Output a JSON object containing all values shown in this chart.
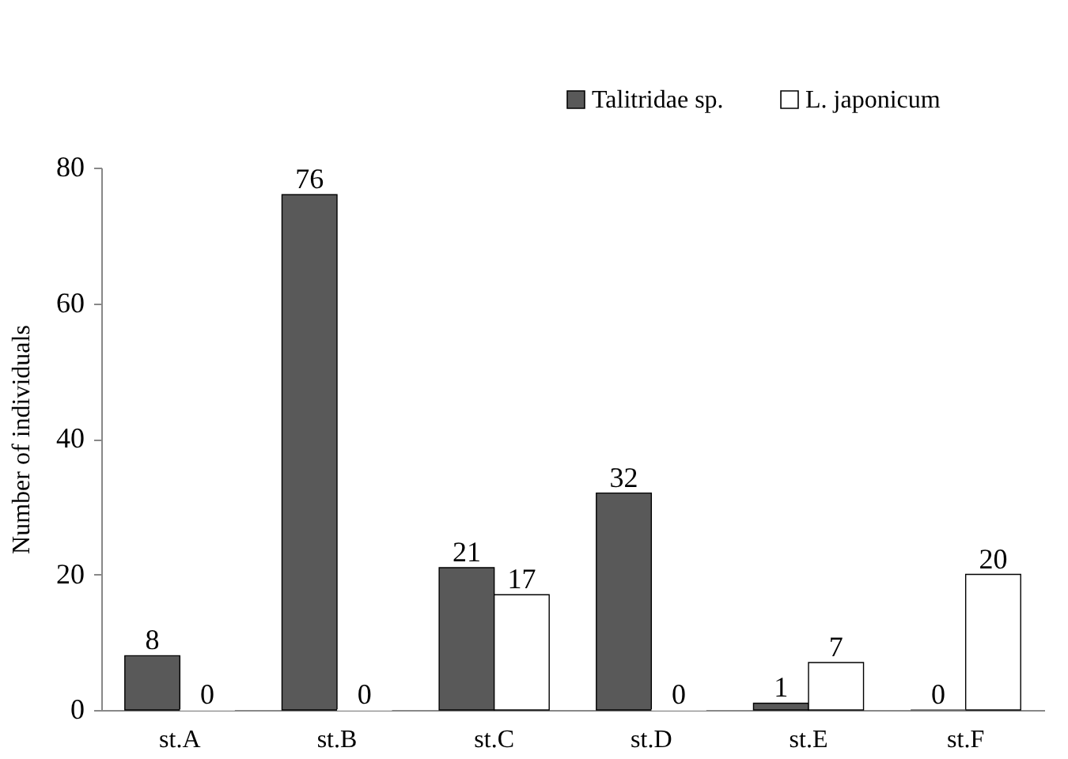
{
  "chart_data": {
    "type": "bar",
    "ylabel": "Number of individuals",
    "categories": [
      "st.A",
      "st.B",
      "st.C",
      "st.D",
      "st.E",
      "st.F"
    ],
    "series": [
      {
        "name": "Talitridae sp.",
        "color": "#595959",
        "values": [
          8,
          76,
          21,
          32,
          1,
          0
        ]
      },
      {
        "name": "L. japonicum",
        "color": "#ffffff",
        "values": [
          0,
          0,
          17,
          0,
          7,
          20
        ]
      }
    ],
    "ylim": [
      0,
      80
    ],
    "yticks": [
      0,
      20,
      40,
      60,
      80
    ],
    "data_labels": true,
    "legend": "top right",
    "grid": false
  }
}
